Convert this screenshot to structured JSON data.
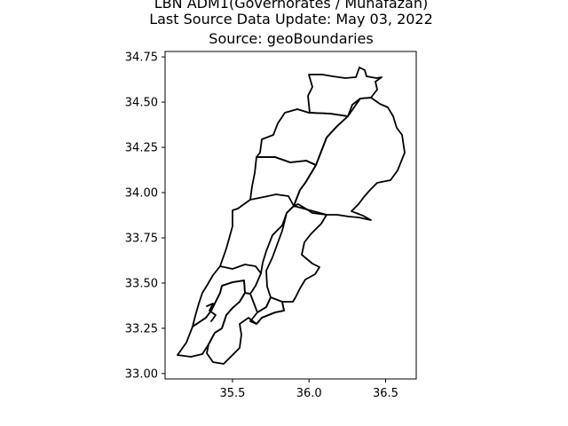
{
  "map": {
    "title_lines": [
      "LBN ADM1(Governorates / Muhafazah)",
      "Last Source Data Update: May 03, 2022",
      "Source: geoBoundaries"
    ],
    "x_ticks": [
      {
        "value": 35.5,
        "label": "35.5"
      },
      {
        "value": 36.0,
        "label": "36.0"
      },
      {
        "value": 36.5,
        "label": "36.5"
      }
    ],
    "y_ticks": [
      {
        "value": 34.75,
        "label": "34.75"
      },
      {
        "value": 34.5,
        "label": "34.50"
      },
      {
        "value": 34.25,
        "label": "34.25"
      },
      {
        "value": 34.0,
        "label": "34.00"
      },
      {
        "value": 33.75,
        "label": "33.75"
      },
      {
        "value": 33.5,
        "label": "33.50"
      },
      {
        "value": 33.25,
        "label": "33.25"
      },
      {
        "value": 33.0,
        "label": "33.00"
      }
    ],
    "xlim": [
      35.06,
      36.7
    ],
    "ylim": [
      32.97,
      34.78
    ],
    "colors": {
      "boundary": "#000000",
      "background": "#ffffff"
    }
  }
}
